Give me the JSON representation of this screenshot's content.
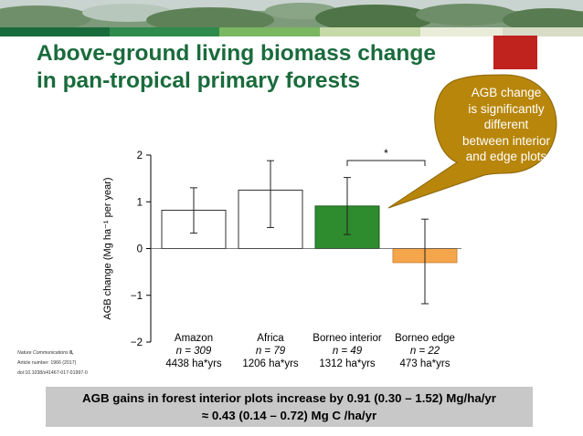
{
  "slide": {
    "title_line1": "Above-ground living biomass change",
    "title_line2": "in pan-tropical primary forests",
    "colors": {
      "title": "#1a6b3c",
      "accent_red": "#c0221d",
      "stripe": [
        "#1a6b3c",
        "#2f8a4d",
        "#7bb661",
        "#c6d9a8",
        "#e9ecd9",
        "#ffffff"
      ],
      "callout": "#b8860b",
      "summary_box": "#c8c8c8"
    }
  },
  "callout": {
    "lines": [
      "AGB change",
      "is significantly",
      "different",
      "between interior",
      "and edge plots"
    ]
  },
  "citation": {
    "journal": "Nature Communications",
    "volume": " 8,",
    "article": "Article number: 1966 (2017)",
    "doi": "doi:10.1038/s41467-017-01997-0"
  },
  "summary": {
    "line1": "AGB gains in forest interior plots increase by 0.91 (0.30 – 1.52) Mg/ha/yr",
    "line2": "≈ 0.43 (0.14 – 0.72) Mg C /ha/yr"
  },
  "chart_data": {
    "type": "bar",
    "categories": [
      "Amazon",
      "Africa",
      "Borneo interior",
      "Borneo edge"
    ],
    "n_labels": [
      "n = 309",
      "n = 79",
      "n = 49",
      "n = 22"
    ],
    "effort_labels": [
      "4438 ha*yrs",
      "1206 ha*yrs",
      "1312 ha*yrs",
      "473 ha*yrs"
    ],
    "values": [
      0.82,
      1.25,
      0.91,
      -0.3
    ],
    "error_low": [
      0.33,
      0.45,
      0.3,
      -1.18
    ],
    "error_high": [
      1.3,
      1.88,
      1.52,
      0.63
    ],
    "bar_fill": [
      "#ffffff",
      "#ffffff",
      "#2e8b2e",
      "#f5a54a"
    ],
    "bar_stroke": [
      "#333333",
      "#333333",
      "#1d5e1d",
      "#d0883a"
    ],
    "ylabel": "AGB change (Mg ha⁻¹ per year)",
    "ylim": [
      -2,
      2
    ],
    "yticks": [
      -2,
      -1,
      0,
      1,
      2
    ],
    "ytick_labels": [
      "−2",
      "−1",
      "0",
      "1",
      "2"
    ],
    "significance": {
      "from": "Borneo interior",
      "to": "Borneo edge",
      "label": "*"
    }
  }
}
